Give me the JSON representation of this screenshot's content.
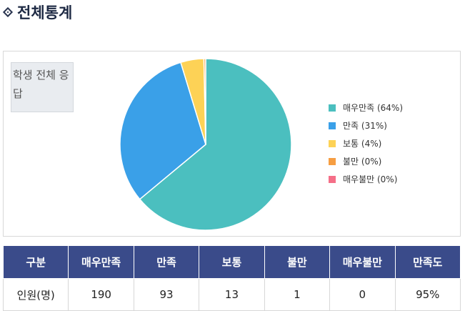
{
  "section": {
    "title": "전체통계"
  },
  "chart_label": "학생 전체 응답",
  "chart_data": {
    "type": "pie",
    "slices": [
      {
        "label": "매우만족 (64%)",
        "value": 190,
        "color": "#4bbfbf"
      },
      {
        "label": "만족 (31%)",
        "value": 93,
        "color": "#3aa0e8"
      },
      {
        "label": "보통 (4%)",
        "value": 13,
        "color": "#fdd256"
      },
      {
        "label": "불만 (0%)",
        "value": 1,
        "color": "#f69e42"
      },
      {
        "label": "매우불만 (0%)",
        "value": 0,
        "color": "#f56f88"
      }
    ],
    "legend_position": "right"
  },
  "table": {
    "headers": [
      "구분",
      "매우만족",
      "만족",
      "보통",
      "불만",
      "매우불만",
      "만족도"
    ],
    "row": [
      "인원(명)",
      "190",
      "93",
      "13",
      "1",
      "0",
      "95%"
    ]
  }
}
